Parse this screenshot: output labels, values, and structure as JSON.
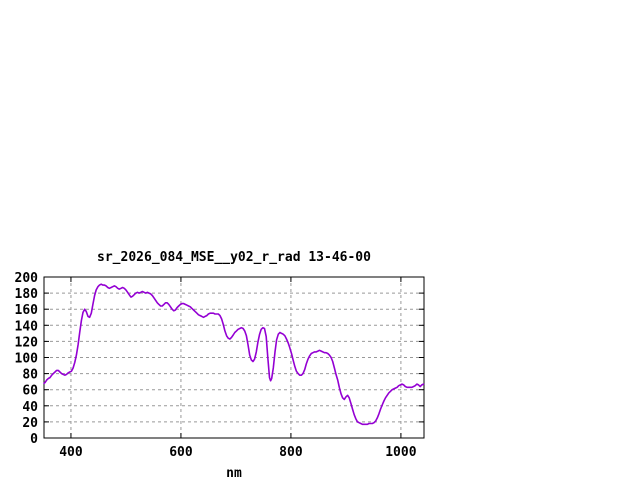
{
  "window": {
    "background_color": "#ffffff"
  },
  "chart_data": {
    "type": "line",
    "title": "sr_2026_084_MSE__y02_r_rad 13-46-00",
    "xlabel": "nm",
    "ylabel": "",
    "xlim": [
      351,
      1042
    ],
    "ylim": [
      0,
      200
    ],
    "x_ticks": [
      400,
      600,
      800,
      1000
    ],
    "y_ticks": [
      0,
      20,
      40,
      60,
      80,
      100,
      120,
      140,
      160,
      180,
      200
    ],
    "grid": true,
    "legend_position": "none",
    "line_color": "#9400d3",
    "grid_color": "#999999",
    "border_color": "#000000",
    "series": [
      {
        "name": "sr_2026_084_MSE__y02_r_rad",
        "points": [
          [
            351,
            68
          ],
          [
            353,
            69
          ],
          [
            356,
            72
          ],
          [
            359,
            74
          ],
          [
            362,
            75
          ],
          [
            365,
            78
          ],
          [
            368,
            80
          ],
          [
            371,
            82
          ],
          [
            374,
            84
          ],
          [
            377,
            84
          ],
          [
            380,
            82
          ],
          [
            383,
            80
          ],
          [
            386,
            79
          ],
          [
            389,
            78
          ],
          [
            392,
            79
          ],
          [
            395,
            81
          ],
          [
            398,
            82
          ],
          [
            401,
            83
          ],
          [
            404,
            87
          ],
          [
            407,
            94
          ],
          [
            410,
            103
          ],
          [
            413,
            116
          ],
          [
            416,
            131
          ],
          [
            419,
            146
          ],
          [
            422,
            156
          ],
          [
            425,
            160
          ],
          [
            428,
            157
          ],
          [
            431,
            151
          ],
          [
            434,
            150
          ],
          [
            437,
            155
          ],
          [
            440,
            166
          ],
          [
            443,
            177
          ],
          [
            446,
            184
          ],
          [
            449,
            188
          ],
          [
            452,
            190
          ],
          [
            455,
            191
          ],
          [
            458,
            190
          ],
          [
            461,
            190
          ],
          [
            464,
            189
          ],
          [
            467,
            187
          ],
          [
            470,
            186
          ],
          [
            473,
            187
          ],
          [
            476,
            188
          ],
          [
            479,
            189
          ],
          [
            482,
            188
          ],
          [
            485,
            186
          ],
          [
            488,
            185
          ],
          [
            491,
            186
          ],
          [
            494,
            187
          ],
          [
            497,
            186
          ],
          [
            500,
            184
          ],
          [
            503,
            181
          ],
          [
            506,
            178
          ],
          [
            509,
            175
          ],
          [
            512,
            176
          ],
          [
            515,
            178
          ],
          [
            518,
            180
          ],
          [
            521,
            181
          ],
          [
            524,
            180
          ],
          [
            527,
            181
          ],
          [
            530,
            182
          ],
          [
            533,
            181
          ],
          [
            536,
            180
          ],
          [
            539,
            181
          ],
          [
            542,
            180
          ],
          [
            545,
            179
          ],
          [
            548,
            177
          ],
          [
            551,
            174
          ],
          [
            554,
            171
          ],
          [
            557,
            168
          ],
          [
            560,
            166
          ],
          [
            563,
            164
          ],
          [
            566,
            164
          ],
          [
            569,
            166
          ],
          [
            572,
            168
          ],
          [
            575,
            168
          ],
          [
            578,
            166
          ],
          [
            581,
            163
          ],
          [
            584,
            160
          ],
          [
            587,
            158
          ],
          [
            590,
            159
          ],
          [
            593,
            162
          ],
          [
            596,
            164
          ],
          [
            599,
            166
          ],
          [
            602,
            167
          ],
          [
            605,
            167
          ],
          [
            608,
            166
          ],
          [
            611,
            165
          ],
          [
            614,
            164
          ],
          [
            617,
            163
          ],
          [
            620,
            161
          ],
          [
            623,
            159
          ],
          [
            626,
            157
          ],
          [
            629,
            155
          ],
          [
            632,
            153
          ],
          [
            635,
            152
          ],
          [
            638,
            151
          ],
          [
            641,
            150
          ],
          [
            644,
            151
          ],
          [
            647,
            152
          ],
          [
            650,
            154
          ],
          [
            653,
            155
          ],
          [
            656,
            155
          ],
          [
            659,
            155
          ],
          [
            662,
            154
          ],
          [
            665,
            154
          ],
          [
            668,
            154
          ],
          [
            671,
            152
          ],
          [
            674,
            148
          ],
          [
            677,
            141
          ],
          [
            680,
            133
          ],
          [
            683,
            127
          ],
          [
            686,
            124
          ],
          [
            689,
            123
          ],
          [
            692,
            125
          ],
          [
            695,
            128
          ],
          [
            698,
            131
          ],
          [
            701,
            133
          ],
          [
            704,
            135
          ],
          [
            707,
            136
          ],
          [
            710,
            137
          ],
          [
            713,
            136
          ],
          [
            716,
            133
          ],
          [
            719,
            127
          ],
          [
            722,
            116
          ],
          [
            725,
            103
          ],
          [
            728,
            97
          ],
          [
            731,
            95
          ],
          [
            734,
            98
          ],
          [
            737,
            107
          ],
          [
            740,
            119
          ],
          [
            743,
            129
          ],
          [
            746,
            135
          ],
          [
            749,
            137
          ],
          [
            752,
            136
          ],
          [
            755,
            126
          ],
          [
            758,
            100
          ],
          [
            761,
            75
          ],
          [
            763,
            71
          ],
          [
            765,
            74
          ],
          [
            768,
            87
          ],
          [
            771,
            107
          ],
          [
            774,
            122
          ],
          [
            777,
            129
          ],
          [
            780,
            131
          ],
          [
            783,
            130
          ],
          [
            786,
            129
          ],
          [
            789,
            127
          ],
          [
            792,
            123
          ],
          [
            795,
            118
          ],
          [
            798,
            112
          ],
          [
            801,
            105
          ],
          [
            804,
            97
          ],
          [
            807,
            89
          ],
          [
            810,
            83
          ],
          [
            813,
            80
          ],
          [
            816,
            78
          ],
          [
            819,
            78
          ],
          [
            822,
            80
          ],
          [
            825,
            85
          ],
          [
            828,
            92
          ],
          [
            831,
            98
          ],
          [
            834,
            102
          ],
          [
            837,
            105
          ],
          [
            840,
            106
          ],
          [
            843,
            107
          ],
          [
            846,
            107
          ],
          [
            849,
            108
          ],
          [
            852,
            109
          ],
          [
            855,
            108
          ],
          [
            858,
            107
          ],
          [
            861,
            106
          ],
          [
            864,
            106
          ],
          [
            867,
            105
          ],
          [
            870,
            103
          ],
          [
            873,
            100
          ],
          [
            876,
            95
          ],
          [
            879,
            87
          ],
          [
            882,
            79
          ],
          [
            885,
            72
          ],
          [
            888,
            63
          ],
          [
            891,
            55
          ],
          [
            894,
            50
          ],
          [
            897,
            48
          ],
          [
            900,
            51
          ],
          [
            903,
            53
          ],
          [
            906,
            50
          ],
          [
            909,
            43
          ],
          [
            912,
            36
          ],
          [
            915,
            29
          ],
          [
            918,
            24
          ],
          [
            921,
            20
          ],
          [
            924,
            19
          ],
          [
            927,
            18
          ],
          [
            930,
            17
          ],
          [
            933,
            17
          ],
          [
            936,
            17
          ],
          [
            939,
            17
          ],
          [
            942,
            18
          ],
          [
            945,
            18
          ],
          [
            948,
            18
          ],
          [
            951,
            19
          ],
          [
            954,
            21
          ],
          [
            957,
            25
          ],
          [
            960,
            30
          ],
          [
            963,
            36
          ],
          [
            966,
            41
          ],
          [
            969,
            46
          ],
          [
            972,
            50
          ],
          [
            975,
            53
          ],
          [
            978,
            56
          ],
          [
            981,
            58
          ],
          [
            984,
            60
          ],
          [
            987,
            61
          ],
          [
            990,
            62
          ],
          [
            993,
            63
          ],
          [
            996,
            65
          ],
          [
            999,
            66
          ],
          [
            1002,
            67
          ],
          [
            1005,
            66
          ],
          [
            1008,
            64
          ],
          [
            1011,
            63
          ],
          [
            1014,
            63
          ],
          [
            1017,
            63
          ],
          [
            1020,
            63
          ],
          [
            1023,
            64
          ],
          [
            1026,
            65
          ],
          [
            1029,
            67
          ],
          [
            1032,
            66
          ],
          [
            1035,
            64
          ],
          [
            1038,
            66
          ],
          [
            1041,
            67
          ]
        ]
      }
    ]
  }
}
